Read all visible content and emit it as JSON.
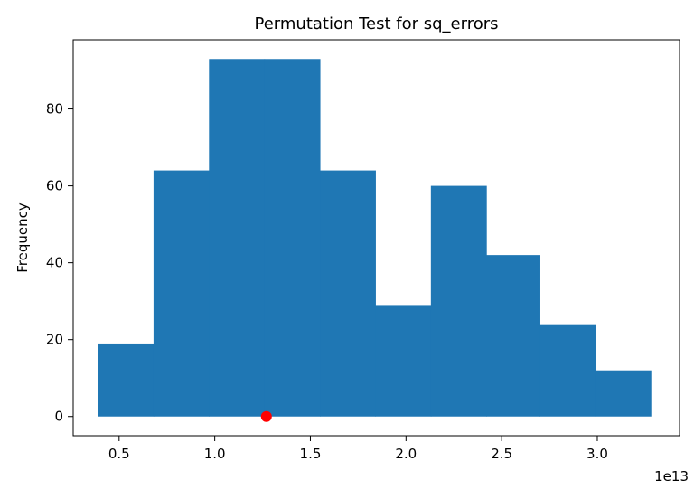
{
  "chart_data": {
    "type": "bar",
    "title": "Permutation Test for sq_errors",
    "xlabel": "",
    "ylabel": "Frequency",
    "x_offset_label": "1e13",
    "xlim": [
      0.26,
      3.43
    ],
    "ylim": [
      -5,
      98
    ],
    "xticks": [
      {
        "value": 0.5,
        "label": "0.5"
      },
      {
        "value": 1.0,
        "label": "1.0"
      },
      {
        "value": 1.5,
        "label": "1.5"
      },
      {
        "value": 2.0,
        "label": "2.0"
      },
      {
        "value": 2.5,
        "label": "2.5"
      },
      {
        "value": 3.0,
        "label": "3.0"
      }
    ],
    "yticks": [
      {
        "value": 0,
        "label": "0"
      },
      {
        "value": 20,
        "label": "20"
      },
      {
        "value": 40,
        "label": "40"
      },
      {
        "value": 60,
        "label": "60"
      },
      {
        "value": 80,
        "label": "80"
      }
    ],
    "bins": [
      {
        "x0": 0.39,
        "x1": 0.68,
        "count": 19
      },
      {
        "x0": 0.68,
        "x1": 0.97,
        "count": 64
      },
      {
        "x0": 0.97,
        "x1": 1.26,
        "count": 93
      },
      {
        "x0": 1.26,
        "x1": 1.55,
        "count": 93
      },
      {
        "x0": 1.55,
        "x1": 1.84,
        "count": 64
      },
      {
        "x0": 1.84,
        "x1": 2.13,
        "count": 29
      },
      {
        "x0": 2.13,
        "x1": 2.42,
        "count": 60
      },
      {
        "x0": 2.42,
        "x1": 2.7,
        "count": 42
      },
      {
        "x0": 2.7,
        "x1": 2.99,
        "count": 24
      },
      {
        "x0": 2.99,
        "x1": 3.28,
        "count": 12
      }
    ],
    "observed_point": {
      "x": 1.27,
      "y": 0
    },
    "bar_color": "#1f77b4",
    "point_color": "#ff0000",
    "grid": false
  }
}
